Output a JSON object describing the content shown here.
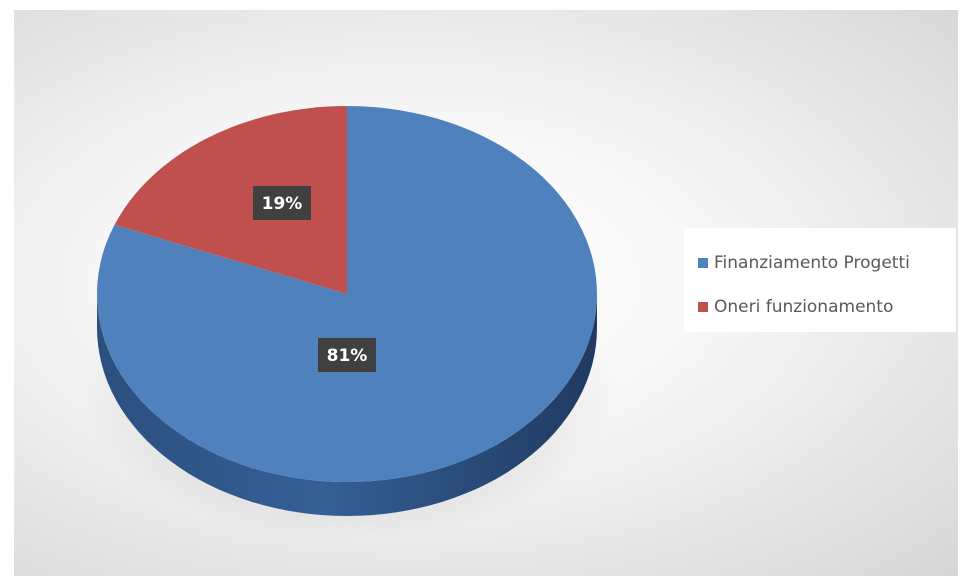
{
  "chart_data": {
    "type": "pie",
    "title": "",
    "slices": [
      {
        "label": "Finanziamento Progetti",
        "value": 81,
        "data_label": "81%",
        "color": "#4f81bd"
      },
      {
        "label": "Oneri funzionamento",
        "value": 19,
        "data_label": "19%",
        "color": "#c0504d"
      }
    ],
    "three_d": true,
    "legend_position": "right"
  },
  "legend": {
    "items": [
      {
        "label": "Finanziamento Progetti",
        "color": "#4f81bd"
      },
      {
        "label": "Oneri funzionamento",
        "color": "#c0504d"
      }
    ]
  }
}
